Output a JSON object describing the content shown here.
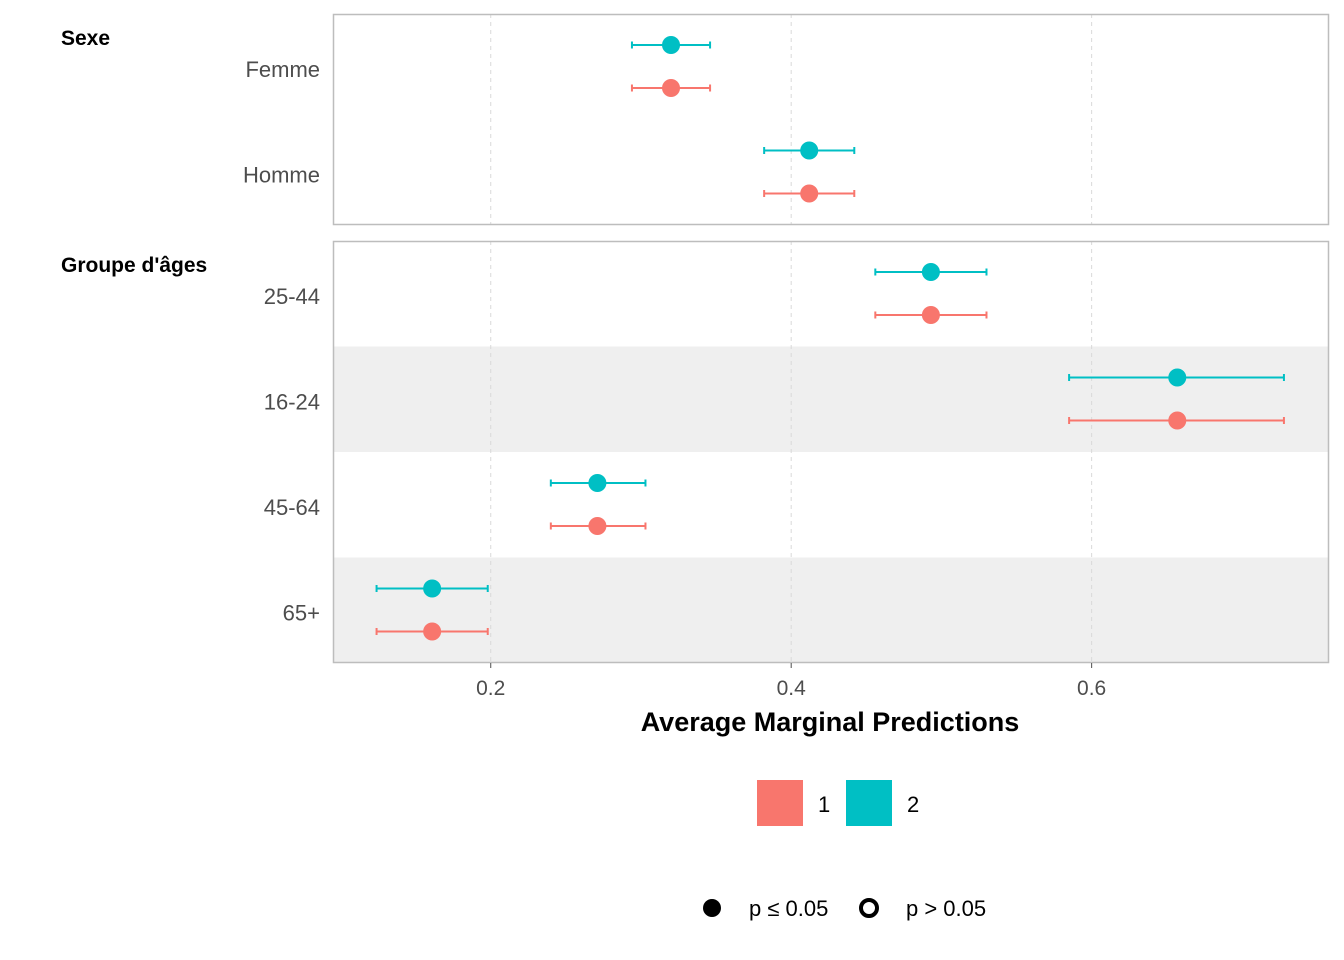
{
  "chart_data": {
    "type": "forest",
    "xlabel": "Average Marginal Predictions",
    "x_ticks": [
      0.2,
      0.4,
      0.6
    ],
    "xlim": [
      0.095,
      0.758
    ],
    "grid": "vertical-dashed",
    "groups": [
      {
        "title": "Sexe",
        "rows": [
          {
            "label": "Femme",
            "points": [
              {
                "series": "2",
                "estimate": 0.32,
                "low": 0.294,
                "high": 0.346,
                "significant": true
              },
              {
                "series": "1",
                "estimate": 0.32,
                "low": 0.294,
                "high": 0.346,
                "significant": true
              }
            ]
          },
          {
            "label": "Homme",
            "points": [
              {
                "series": "2",
                "estimate": 0.412,
                "low": 0.382,
                "high": 0.442,
                "significant": true
              },
              {
                "series": "1",
                "estimate": 0.412,
                "low": 0.382,
                "high": 0.442,
                "significant": true
              }
            ]
          }
        ]
      },
      {
        "title": "Groupe d'âges",
        "rows": [
          {
            "label": "25-44",
            "shaded": false,
            "points": [
              {
                "series": "2",
                "estimate": 0.493,
                "low": 0.456,
                "high": 0.53,
                "significant": true
              },
              {
                "series": "1",
                "estimate": 0.493,
                "low": 0.456,
                "high": 0.53,
                "significant": true
              }
            ]
          },
          {
            "label": "16-24",
            "shaded": true,
            "points": [
              {
                "series": "2",
                "estimate": 0.657,
                "low": 0.585,
                "high": 0.728,
                "significant": true
              },
              {
                "series": "1",
                "estimate": 0.657,
                "low": 0.585,
                "high": 0.728,
                "significant": true
              }
            ]
          },
          {
            "label": "45-64",
            "shaded": false,
            "points": [
              {
                "series": "2",
                "estimate": 0.271,
                "low": 0.24,
                "high": 0.303,
                "significant": true
              },
              {
                "series": "1",
                "estimate": 0.271,
                "low": 0.24,
                "high": 0.303,
                "significant": true
              }
            ]
          },
          {
            "label": "65+",
            "shaded": true,
            "points": [
              {
                "series": "2",
                "estimate": 0.161,
                "low": 0.124,
                "high": 0.198,
                "significant": true
              },
              {
                "series": "1",
                "estimate": 0.161,
                "low": 0.124,
                "high": 0.198,
                "significant": true
              }
            ]
          }
        ]
      }
    ],
    "legend": {
      "placement": "bottom",
      "series": [
        {
          "name": "1",
          "color": "#F8766D"
        },
        {
          "name": "2",
          "color": "#00BFC4"
        }
      ],
      "shapes": [
        {
          "label": "p ≤ 0.05",
          "style": "filled"
        },
        {
          "label": "p > 0.05",
          "style": "hollow"
        }
      ]
    }
  }
}
